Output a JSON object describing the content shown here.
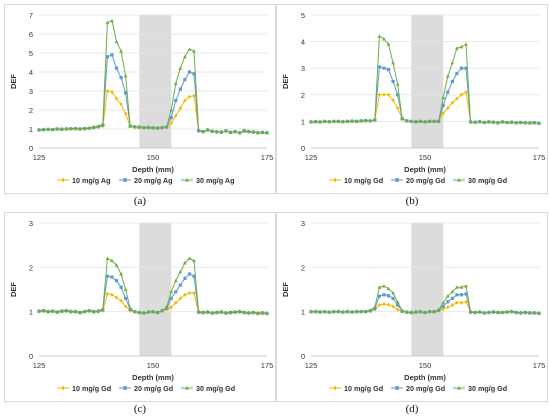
{
  "chart_data": [
    {
      "type": "line",
      "caption": "(a)",
      "xlabel": "Depth (mm)",
      "ylabel": "DEF",
      "xlim": [
        125,
        175
      ],
      "ylim": [
        0,
        7
      ],
      "xticks": [
        125,
        150,
        175
      ],
      "yticks": [
        0,
        1,
        2,
        3,
        4,
        5,
        6,
        7
      ],
      "grid": true,
      "legend": "bottom",
      "shaded_region": [
        147,
        154
      ],
      "x": [
        125,
        126,
        127,
        128,
        129,
        130,
        131,
        132,
        133,
        134,
        135,
        136,
        137,
        138,
        139,
        140,
        141,
        142,
        143,
        144,
        145,
        146,
        147,
        148,
        149,
        150,
        151,
        152,
        153,
        154,
        155,
        156,
        157,
        158,
        159,
        160,
        161,
        162,
        163,
        164,
        165,
        166,
        167,
        168,
        169,
        170,
        171,
        172,
        173,
        174,
        175
      ],
      "series": [
        {
          "name": "10 mg/g Ag",
          "color": "#f5b800",
          "marker": "diamond",
          "values": [
            0.95,
            0.97,
            0.98,
            0.96,
            0.99,
            0.98,
            1.0,
            1.02,
            1.0,
            0.99,
            1.01,
            1.03,
            1.06,
            1.1,
            1.15,
            3.0,
            2.95,
            2.6,
            2.3,
            1.8,
            1.15,
            1.1,
            1.08,
            1.05,
            1.07,
            1.05,
            1.03,
            1.06,
            1.08,
            1.3,
            1.7,
            2.1,
            2.5,
            2.7,
            2.75,
            0.9,
            0.85,
            0.95,
            0.88,
            0.85,
            0.83,
            0.9,
            0.82,
            0.86,
            0.8,
            0.95,
            0.88,
            0.84,
            0.8,
            0.82,
            0.8
          ]
        },
        {
          "name": "20 mg/g Ag",
          "color": "#5b9bd5",
          "marker": "square",
          "values": [
            0.95,
            0.96,
            0.98,
            0.97,
            1.0,
            0.99,
            1.0,
            1.01,
            1.02,
            1.0,
            1.02,
            1.04,
            1.08,
            1.12,
            1.2,
            4.8,
            4.9,
            4.2,
            3.7,
            2.9,
            1.15,
            1.12,
            1.1,
            1.07,
            1.08,
            1.06,
            1.05,
            1.07,
            1.1,
            1.6,
            2.5,
            3.1,
            3.6,
            4.0,
            3.9,
            0.9,
            0.86,
            0.95,
            0.88,
            0.85,
            0.83,
            0.9,
            0.82,
            0.86,
            0.8,
            0.9,
            0.86,
            0.84,
            0.8,
            0.82,
            0.8
          ]
        },
        {
          "name": "30 mg/g Ag",
          "color": "#70ad47",
          "marker": "triangle",
          "values": [
            0.96,
            0.97,
            0.99,
            0.98,
            1.0,
            0.99,
            1.01,
            1.02,
            1.03,
            1.01,
            1.03,
            1.05,
            1.1,
            1.15,
            1.25,
            6.6,
            6.7,
            5.6,
            5.1,
            3.8,
            1.15,
            1.12,
            1.1,
            1.08,
            1.09,
            1.07,
            1.06,
            1.08,
            1.12,
            2.0,
            3.4,
            4.2,
            4.8,
            5.2,
            5.1,
            0.95,
            0.87,
            0.95,
            0.88,
            0.85,
            0.84,
            0.9,
            0.83,
            0.86,
            0.8,
            0.88,
            0.86,
            0.84,
            0.81,
            0.82,
            0.8
          ]
        }
      ]
    },
    {
      "type": "line",
      "caption": "(b)",
      "xlabel": "Depth (mm)",
      "ylabel": "DEF",
      "xlim": [
        125,
        175
      ],
      "ylim": [
        0,
        5
      ],
      "xticks": [
        125,
        150,
        175
      ],
      "yticks": [
        0,
        1,
        2,
        3,
        4,
        5
      ],
      "grid": true,
      "legend": "bottom",
      "shaded_region": [
        147,
        154
      ],
      "x": [
        125,
        126,
        127,
        128,
        129,
        130,
        131,
        132,
        133,
        134,
        135,
        136,
        137,
        138,
        139,
        140,
        141,
        142,
        143,
        144,
        145,
        146,
        147,
        148,
        149,
        150,
        151,
        152,
        153,
        154,
        155,
        156,
        157,
        158,
        159,
        160,
        161,
        162,
        163,
        164,
        165,
        166,
        167,
        168,
        169,
        170,
        171,
        172,
        173,
        174,
        175
      ],
      "series": [
        {
          "name": "10 mg/g Gd",
          "color": "#f5b800",
          "marker": "diamond",
          "values": [
            0.98,
            0.99,
            0.98,
            1.0,
            0.99,
            1.0,
            1.0,
            0.99,
            1.0,
            1.01,
            1.0,
            1.02,
            1.03,
            1.02,
            1.05,
            2.0,
            2.0,
            2.0,
            1.8,
            1.5,
            1.1,
            1.02,
            1.0,
            0.99,
            1.0,
            0.98,
            1.0,
            1.0,
            1.0,
            1.3,
            1.5,
            1.7,
            1.85,
            2.0,
            2.1,
            0.98,
            0.97,
            0.99,
            0.96,
            0.98,
            0.97,
            0.95,
            0.98,
            0.96,
            0.97,
            0.95,
            0.96,
            0.95,
            0.94,
            0.95,
            0.93
          ]
        },
        {
          "name": "20 mg/g Gd",
          "color": "#5b9bd5",
          "marker": "square",
          "values": [
            0.98,
            0.99,
            0.98,
            1.0,
            0.99,
            1.0,
            1.0,
            0.99,
            1.0,
            1.01,
            1.0,
            1.02,
            1.03,
            1.02,
            1.05,
            3.05,
            3.0,
            2.95,
            2.5,
            2.0,
            1.1,
            1.02,
            1.0,
            0.99,
            1.0,
            0.98,
            1.0,
            1.0,
            1.0,
            1.6,
            2.1,
            2.5,
            2.8,
            3.0,
            3.0,
            0.98,
            0.97,
            0.99,
            0.96,
            0.98,
            0.97,
            0.95,
            0.98,
            0.96,
            0.97,
            0.95,
            0.96,
            0.95,
            0.94,
            0.95,
            0.93
          ]
        },
        {
          "name": "30 mg/g Gd",
          "color": "#70ad47",
          "marker": "triangle",
          "values": [
            0.98,
            0.99,
            0.98,
            1.0,
            0.99,
            1.0,
            1.0,
            0.99,
            1.0,
            1.01,
            1.0,
            1.02,
            1.03,
            1.02,
            1.05,
            4.2,
            4.1,
            3.9,
            3.2,
            2.4,
            1.1,
            1.02,
            1.0,
            0.99,
            1.0,
            0.98,
            1.0,
            1.0,
            1.0,
            1.9,
            2.7,
            3.2,
            3.75,
            3.8,
            3.9,
            0.98,
            0.97,
            0.99,
            0.96,
            0.98,
            0.97,
            0.95,
            0.98,
            0.96,
            0.97,
            0.95,
            0.96,
            0.95,
            0.94,
            0.95,
            0.93
          ]
        }
      ]
    },
    {
      "type": "line",
      "caption": "(c)",
      "xlabel": "Depth (mm)",
      "ylabel": "DEF",
      "xlim": [
        125,
        175
      ],
      "ylim": [
        0,
        3
      ],
      "xticks": [
        125,
        150,
        175
      ],
      "yticks": [
        0,
        1,
        2,
        3
      ],
      "grid": true,
      "legend": "bottom",
      "shaded_region": [
        147,
        154
      ],
      "x": [
        125,
        126,
        127,
        128,
        129,
        130,
        131,
        132,
        133,
        134,
        135,
        136,
        137,
        138,
        139,
        140,
        141,
        142,
        143,
        144,
        145,
        146,
        147,
        148,
        149,
        150,
        151,
        152,
        153,
        154,
        155,
        156,
        157,
        158,
        159,
        160,
        161,
        162,
        163,
        164,
        165,
        166,
        167,
        168,
        169,
        170,
        171,
        172,
        173,
        174,
        175
      ],
      "series": [
        {
          "name": "10 mg/g Gd",
          "color": "#f5b800",
          "marker": "diamond",
          "values": [
            1.0,
            1.01,
            0.99,
            1.0,
            0.98,
            1.0,
            1.01,
            0.99,
            1.0,
            0.97,
            1.0,
            1.01,
            0.99,
            1.0,
            1.02,
            1.4,
            1.38,
            1.32,
            1.25,
            1.12,
            1.02,
            1.0,
            0.98,
            0.97,
            0.99,
            1.0,
            0.98,
            1.02,
            1.05,
            1.1,
            1.2,
            1.3,
            1.38,
            1.42,
            1.42,
            0.98,
            0.97,
            0.98,
            0.96,
            0.97,
            0.98,
            0.96,
            0.97,
            0.98,
            0.99,
            0.97,
            0.96,
            0.97,
            0.95,
            0.96,
            0.95
          ]
        },
        {
          "name": "20 mg/g Gd",
          "color": "#5b9bd5",
          "marker": "square",
          "values": [
            1.01,
            1.02,
            1.0,
            1.01,
            0.99,
            1.01,
            1.02,
            1.0,
            1.0,
            0.98,
            1.0,
            1.02,
            1.0,
            1.01,
            1.04,
            1.8,
            1.78,
            1.7,
            1.55,
            1.3,
            1.05,
            1.0,
            0.98,
            0.97,
            0.99,
            1.0,
            0.98,
            1.02,
            1.08,
            1.3,
            1.45,
            1.6,
            1.75,
            1.85,
            1.8,
            0.99,
            0.98,
            0.99,
            0.97,
            0.98,
            0.99,
            0.97,
            0.98,
            0.99,
            1.0,
            0.98,
            0.97,
            0.98,
            0.96,
            0.97,
            0.96
          ]
        },
        {
          "name": "30 mg/g Gd",
          "color": "#70ad47",
          "marker": "triangle",
          "values": [
            1.02,
            1.03,
            1.01,
            1.02,
            1.0,
            1.02,
            1.03,
            1.01,
            1.01,
            0.99,
            1.01,
            1.03,
            1.01,
            1.02,
            1.06,
            2.2,
            2.15,
            2.05,
            1.85,
            1.5,
            1.08,
            1.0,
            0.98,
            0.97,
            0.99,
            1.0,
            0.98,
            1.02,
            1.1,
            1.45,
            1.7,
            1.9,
            2.1,
            2.2,
            2.15,
            1.0,
            0.99,
            1.0,
            0.98,
            0.99,
            1.0,
            0.98,
            0.99,
            1.0,
            1.01,
            0.99,
            0.98,
            0.99,
            0.97,
            0.98,
            0.97
          ]
        }
      ]
    },
    {
      "type": "line",
      "caption": "(d)",
      "xlabel": "Depth (mm)",
      "ylabel": "DEF",
      "xlim": [
        125,
        175
      ],
      "ylim": [
        0,
        3
      ],
      "xticks": [
        125,
        150,
        175
      ],
      "yticks": [
        0,
        1,
        2,
        3
      ],
      "grid": true,
      "legend": "bottom",
      "shaded_region": [
        147,
        154
      ],
      "x": [
        125,
        126,
        127,
        128,
        129,
        130,
        131,
        132,
        133,
        134,
        135,
        136,
        137,
        138,
        139,
        140,
        141,
        142,
        143,
        144,
        145,
        146,
        147,
        148,
        149,
        150,
        151,
        152,
        153,
        154,
        155,
        156,
        157,
        158,
        159,
        160,
        161,
        162,
        163,
        164,
        165,
        166,
        167,
        168,
        169,
        170,
        171,
        172,
        173,
        174,
        175
      ],
      "series": [
        {
          "name": "10 mg/g Gd",
          "color": "#f5b800",
          "marker": "diamond",
          "values": [
            1.0,
            1.0,
            0.99,
            1.0,
            0.99,
            1.0,
            1.0,
            0.99,
            1.0,
            0.99,
            1.0,
            1.0,
            1.0,
            1.01,
            1.05,
            1.15,
            1.17,
            1.16,
            1.12,
            1.05,
            1.0,
            0.99,
            0.98,
            0.99,
            1.0,
            0.98,
            1.0,
            1.0,
            1.02,
            1.06,
            1.1,
            1.15,
            1.2,
            1.2,
            1.22,
            0.99,
            0.98,
            0.99,
            0.97,
            0.98,
            0.99,
            0.98,
            0.98,
            0.99,
            1.0,
            0.98,
            0.97,
            0.98,
            0.97,
            0.97,
            0.96
          ]
        },
        {
          "name": "20 mg/g Gd",
          "color": "#5b9bd5",
          "marker": "square",
          "values": [
            1.0,
            1.0,
            0.99,
            1.0,
            0.99,
            1.0,
            1.0,
            0.99,
            1.0,
            0.99,
            1.0,
            1.0,
            1.0,
            1.02,
            1.07,
            1.35,
            1.38,
            1.36,
            1.3,
            1.15,
            1.01,
            0.99,
            0.98,
            0.99,
            1.0,
            0.98,
            1.0,
            1.0,
            1.03,
            1.12,
            1.22,
            1.3,
            1.38,
            1.38,
            1.4,
            0.99,
            0.98,
            0.99,
            0.97,
            0.98,
            0.99,
            0.98,
            0.98,
            0.99,
            1.0,
            0.98,
            0.97,
            0.98,
            0.97,
            0.97,
            0.96
          ]
        },
        {
          "name": "30 mg/g Gd",
          "color": "#70ad47",
          "marker": "triangle",
          "values": [
            1.0,
            1.01,
            1.0,
            1.0,
            0.99,
            1.0,
            1.01,
            1.0,
            1.0,
            1.0,
            1.0,
            1.01,
            1.01,
            1.03,
            1.1,
            1.55,
            1.58,
            1.52,
            1.42,
            1.22,
            1.02,
            0.99,
            0.98,
            0.99,
            1.0,
            0.98,
            1.0,
            1.0,
            1.04,
            1.2,
            1.35,
            1.45,
            1.55,
            1.55,
            1.58,
            1.0,
            0.99,
            1.0,
            0.98,
            0.99,
            1.0,
            0.99,
            0.99,
            1.0,
            1.01,
            0.99,
            0.98,
            0.99,
            0.98,
            0.98,
            0.97
          ]
        }
      ]
    }
  ]
}
